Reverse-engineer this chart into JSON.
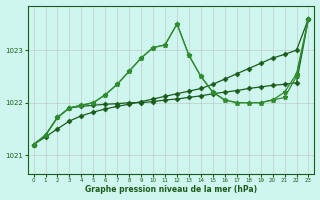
{
  "background_color": "#cff5ef",
  "grid_color": "#b0b0b0",
  "line_color_dark": "#1a5c1a",
  "line_color_mid": "#2e8b2e",
  "xlabel": "Graphe pression niveau de la mer (hPa)",
  "xlim": [
    -0.5,
    23.5
  ],
  "ylim": [
    1020.65,
    1023.85
  ],
  "yticks": [
    1021,
    1022,
    1023
  ],
  "xticks": [
    0,
    1,
    2,
    3,
    4,
    5,
    6,
    7,
    8,
    9,
    10,
    11,
    12,
    13,
    14,
    15,
    16,
    17,
    18,
    19,
    20,
    21,
    22,
    23
  ],
  "series_diagonal": {
    "x": [
      0,
      1,
      2,
      3,
      4,
      5,
      6,
      7,
      8,
      9,
      10,
      11,
      12,
      13,
      14,
      15,
      16,
      17,
      18,
      19,
      20,
      21,
      22,
      23
    ],
    "y": [
      1021.2,
      1021.35,
      1021.5,
      1021.65,
      1021.75,
      1021.82,
      1021.88,
      1021.93,
      1021.97,
      1022.02,
      1022.07,
      1022.12,
      1022.17,
      1022.22,
      1022.27,
      1022.35,
      1022.45,
      1022.55,
      1022.65,
      1022.75,
      1022.85,
      1022.92,
      1023.0,
      1023.6
    ]
  },
  "series_flat": {
    "x": [
      0,
      1,
      2,
      3,
      4,
      5,
      6,
      7,
      8,
      9,
      10,
      11,
      12,
      13,
      14,
      15,
      16,
      17,
      18,
      19,
      20,
      21,
      22,
      23
    ],
    "y": [
      1021.2,
      1021.38,
      1021.72,
      1021.9,
      1021.93,
      1021.95,
      1021.97,
      1021.98,
      1022.0,
      1022.0,
      1022.02,
      1022.05,
      1022.07,
      1022.1,
      1022.13,
      1022.17,
      1022.2,
      1022.23,
      1022.27,
      1022.3,
      1022.33,
      1022.35,
      1022.38,
      1023.6
    ]
  },
  "series_peaked1": {
    "x": [
      0,
      1,
      2,
      3,
      4,
      5,
      6,
      7,
      8,
      9,
      10,
      11,
      12,
      13,
      14,
      15,
      16,
      17,
      18,
      19,
      20,
      21,
      22,
      23
    ],
    "y": [
      1021.2,
      1021.38,
      1021.72,
      1021.9,
      1021.95,
      1022.0,
      1022.15,
      1022.35,
      1022.6,
      1022.85,
      1023.05,
      1023.1,
      1023.5,
      1022.9,
      1022.5,
      1022.2,
      1022.05,
      1022.0,
      1022.0,
      1022.0,
      1022.05,
      1022.1,
      1022.5,
      1023.6
    ]
  },
  "series_peaked2": {
    "x": [
      0,
      1,
      2,
      3,
      4,
      5,
      6,
      7,
      8,
      9,
      10,
      11,
      12,
      13,
      14,
      15,
      16,
      17,
      18,
      19,
      20,
      21,
      22,
      23
    ],
    "y": [
      1021.2,
      1021.38,
      1021.72,
      1021.9,
      1021.95,
      1022.0,
      1022.15,
      1022.35,
      1022.6,
      1022.85,
      1023.05,
      1023.1,
      1023.5,
      1022.9,
      1022.5,
      1022.2,
      1022.05,
      1022.0,
      1022.0,
      1022.0,
      1022.05,
      1022.2,
      1022.55,
      1023.6
    ]
  }
}
